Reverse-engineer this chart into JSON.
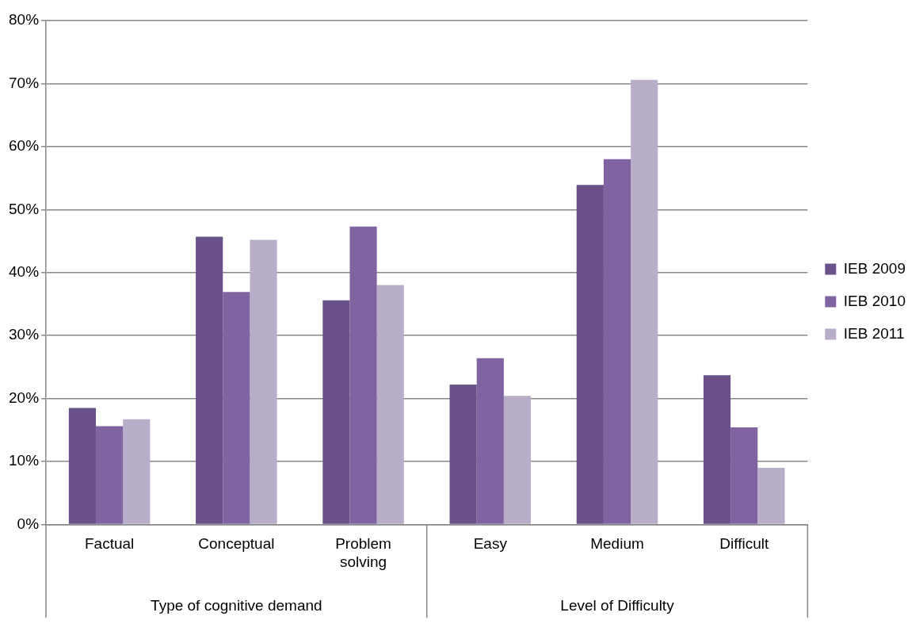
{
  "chart_data": {
    "type": "bar",
    "categories": [
      "Factual",
      "Conceptual",
      "Problem solving",
      "Easy",
      "Medium",
      "Difficult"
    ],
    "series": [
      {
        "name": "IEB 2009",
        "color": "#6a5189",
        "values": [
          18.5,
          45.7,
          35.6,
          22.2,
          53.9,
          23.7
        ]
      },
      {
        "name": "IEB 2010",
        "color": "#8064a2",
        "values": [
          15.6,
          36.9,
          47.3,
          26.4,
          58.0,
          15.4
        ]
      },
      {
        "name": "IEB 2011",
        "color": "#b8aec9",
        "values": [
          16.7,
          45.2,
          38.0,
          20.4,
          70.6,
          9.0
        ]
      }
    ],
    "annotations": [
      "Type of cognitive demand",
      "Level of Difficulty"
    ],
    "ylim": [
      0,
      80
    ],
    "yticks": [
      {
        "value": 0,
        "label": "0%"
      },
      {
        "value": 10,
        "label": "10%"
      },
      {
        "value": 20,
        "label": "20%"
      },
      {
        "value": 30,
        "label": "30%"
      },
      {
        "value": 40,
        "label": "40%"
      },
      {
        "value": 50,
        "label": "50%"
      },
      {
        "value": 60,
        "label": "60%"
      },
      {
        "value": 70,
        "label": "70%"
      },
      {
        "value": 80,
        "label": "80%"
      }
    ],
    "grid": "y",
    "legend": "right"
  }
}
